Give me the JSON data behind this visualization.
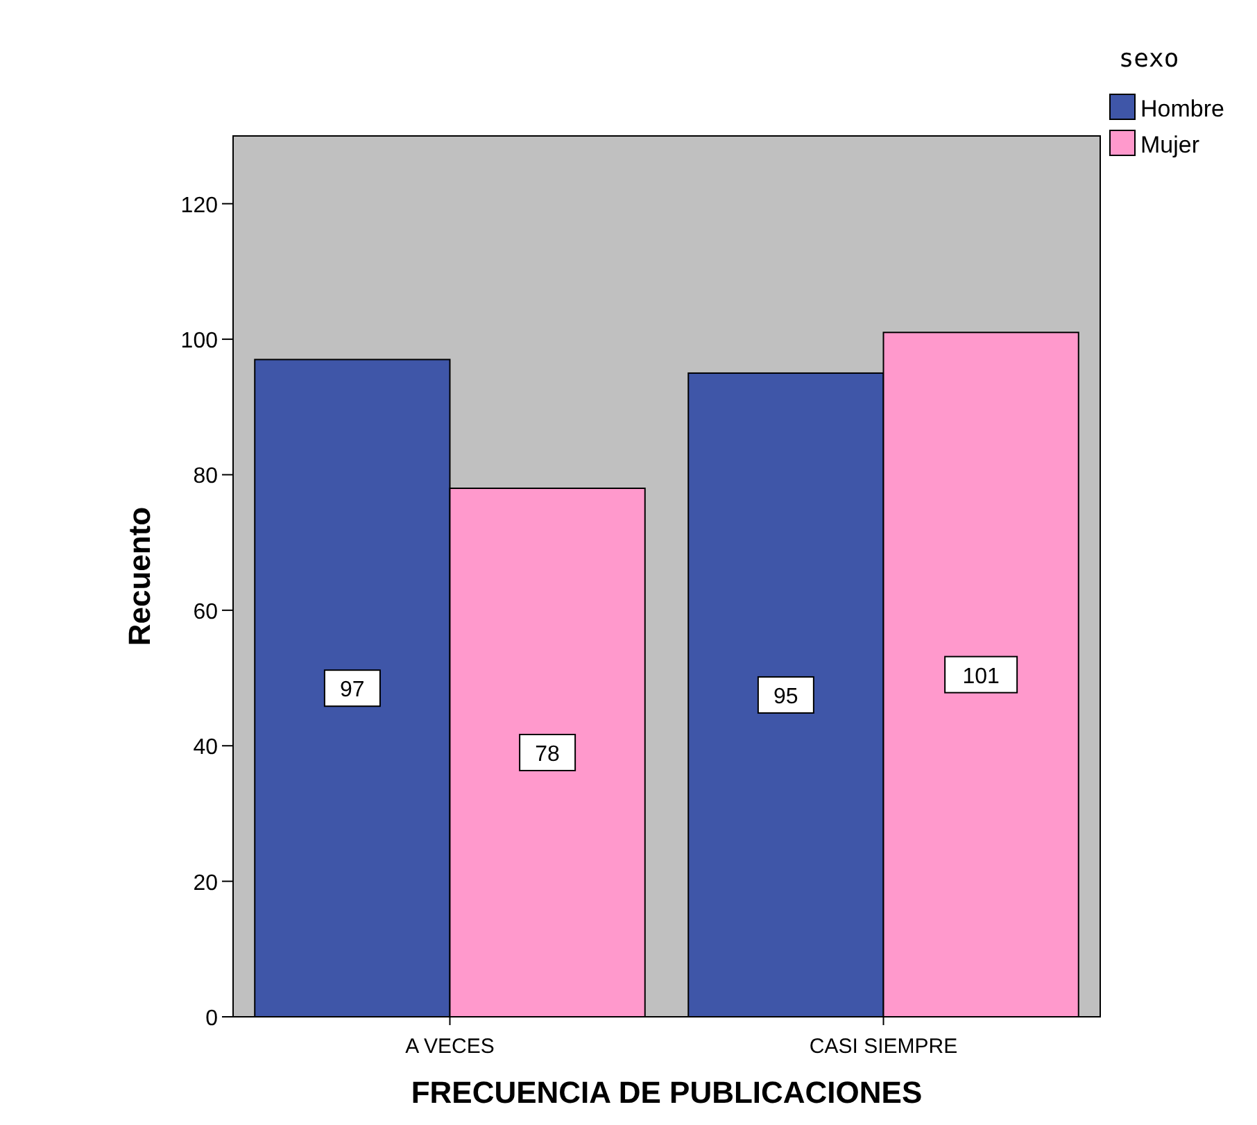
{
  "chart_data": {
    "type": "bar",
    "xlabel": "FRECUENCIA DE PUBLICACIONES",
    "ylabel": "Recuento",
    "legend_title": "sexo",
    "legend": "top right",
    "categories": [
      "A VECES",
      "CASI SIEMPRE"
    ],
    "series": [
      {
        "name": "Hombre",
        "color": "#3f56a8",
        "values": [
          97,
          95
        ]
      },
      {
        "name": "Mujer",
        "color": "#ff99cc",
        "values": [
          78,
          101
        ]
      }
    ],
    "ylim": [
      0,
      130
    ],
    "yticks": [
      0,
      20,
      40,
      60,
      80,
      100,
      120
    ],
    "data_labels": true,
    "grid": false
  }
}
